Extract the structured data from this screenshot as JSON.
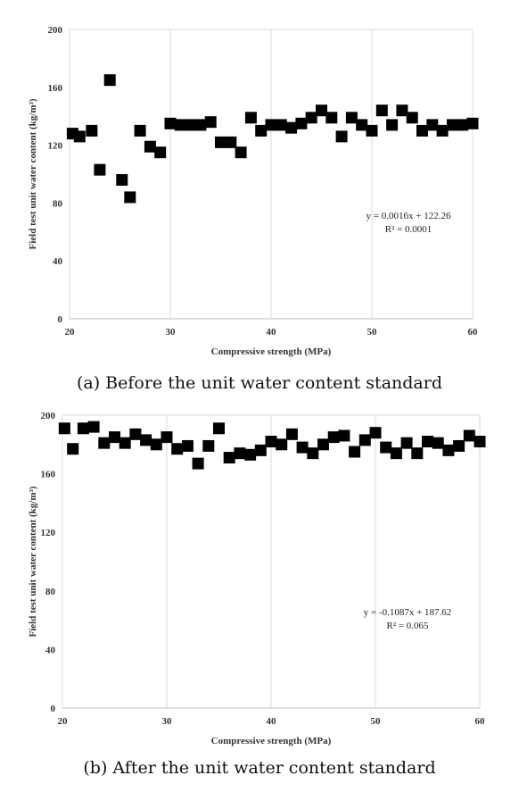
{
  "chart_data": [
    {
      "type": "scatter",
      "caption": "(a) Before the unit water content standard",
      "xlabel": "Compressive strength (MPa)",
      "ylabel": "Field test unit water content (kg/m³)",
      "xlim": [
        20,
        60
      ],
      "ylim": [
        0,
        200
      ],
      "xticks": [
        20,
        30,
        40,
        50,
        60
      ],
      "yticks": [
        0,
        40,
        80,
        120,
        160,
        200
      ],
      "grid": "vertical",
      "marker": "square",
      "marker_color": "#000000",
      "annotation": [
        "y = 0.0016x + 122.26",
        "R² = 0.0001"
      ],
      "points": [
        [
          20.3,
          128
        ],
        [
          21,
          126
        ],
        [
          22.2,
          130
        ],
        [
          23,
          103
        ],
        [
          24,
          165
        ],
        [
          25.2,
          96
        ],
        [
          26,
          84
        ],
        [
          27,
          130
        ],
        [
          28,
          119
        ],
        [
          29,
          115
        ],
        [
          30,
          135
        ],
        [
          31,
          134
        ],
        [
          32,
          134
        ],
        [
          33,
          134
        ],
        [
          34,
          136
        ],
        [
          35,
          122
        ],
        [
          36,
          122
        ],
        [
          37,
          115
        ],
        [
          38,
          139
        ],
        [
          39,
          130
        ],
        [
          40,
          134
        ],
        [
          41,
          134
        ],
        [
          42,
          132
        ],
        [
          43,
          135
        ],
        [
          44,
          139
        ],
        [
          45,
          144
        ],
        [
          46,
          139
        ],
        [
          47,
          126
        ],
        [
          48,
          139
        ],
        [
          49,
          134
        ],
        [
          50,
          130
        ],
        [
          51,
          144
        ],
        [
          52,
          134
        ],
        [
          53,
          144
        ],
        [
          54,
          139
        ],
        [
          55,
          130
        ],
        [
          56,
          134
        ],
        [
          57,
          130
        ],
        [
          58,
          134
        ],
        [
          59,
          134
        ],
        [
          60,
          135
        ]
      ]
    },
    {
      "type": "scatter",
      "caption": "(b) After the unit water content standard",
      "xlabel": "Compressive strength (MPa)",
      "ylabel": "Field test unit water content (kg/m³)",
      "xlim": [
        20,
        60
      ],
      "ylim": [
        0,
        200
      ],
      "xticks": [
        20,
        30,
        40,
        50,
        60
      ],
      "yticks": [
        0,
        40,
        80,
        120,
        160,
        200
      ],
      "grid": "vertical",
      "marker": "square",
      "marker_color": "#000000",
      "annotation": [
        "y = -0.1087x + 187.62",
        "R² = 0.065"
      ],
      "points": [
        [
          20.2,
          191
        ],
        [
          21,
          177
        ],
        [
          22,
          191
        ],
        [
          23,
          192
        ],
        [
          24,
          181
        ],
        [
          25,
          185
        ],
        [
          26,
          181
        ],
        [
          27,
          187
        ],
        [
          28,
          183
        ],
        [
          29,
          180
        ],
        [
          30,
          185
        ],
        [
          31,
          177
        ],
        [
          32,
          179
        ],
        [
          33,
          167
        ],
        [
          34,
          179
        ],
        [
          35,
          191
        ],
        [
          36,
          171
        ],
        [
          37,
          174
        ],
        [
          38,
          173
        ],
        [
          39,
          176
        ],
        [
          40,
          182
        ],
        [
          41,
          180
        ],
        [
          42,
          187
        ],
        [
          43,
          178
        ],
        [
          44,
          174
        ],
        [
          45,
          180
        ],
        [
          46,
          185
        ],
        [
          47,
          186
        ],
        [
          48,
          175
        ],
        [
          49,
          183
        ],
        [
          50,
          188
        ],
        [
          51,
          178
        ],
        [
          52,
          174
        ],
        [
          53,
          181
        ],
        [
          54,
          174
        ],
        [
          55,
          182
        ],
        [
          56,
          181
        ],
        [
          57,
          176
        ],
        [
          58,
          179
        ],
        [
          59,
          186
        ],
        [
          60,
          182
        ]
      ]
    }
  ]
}
